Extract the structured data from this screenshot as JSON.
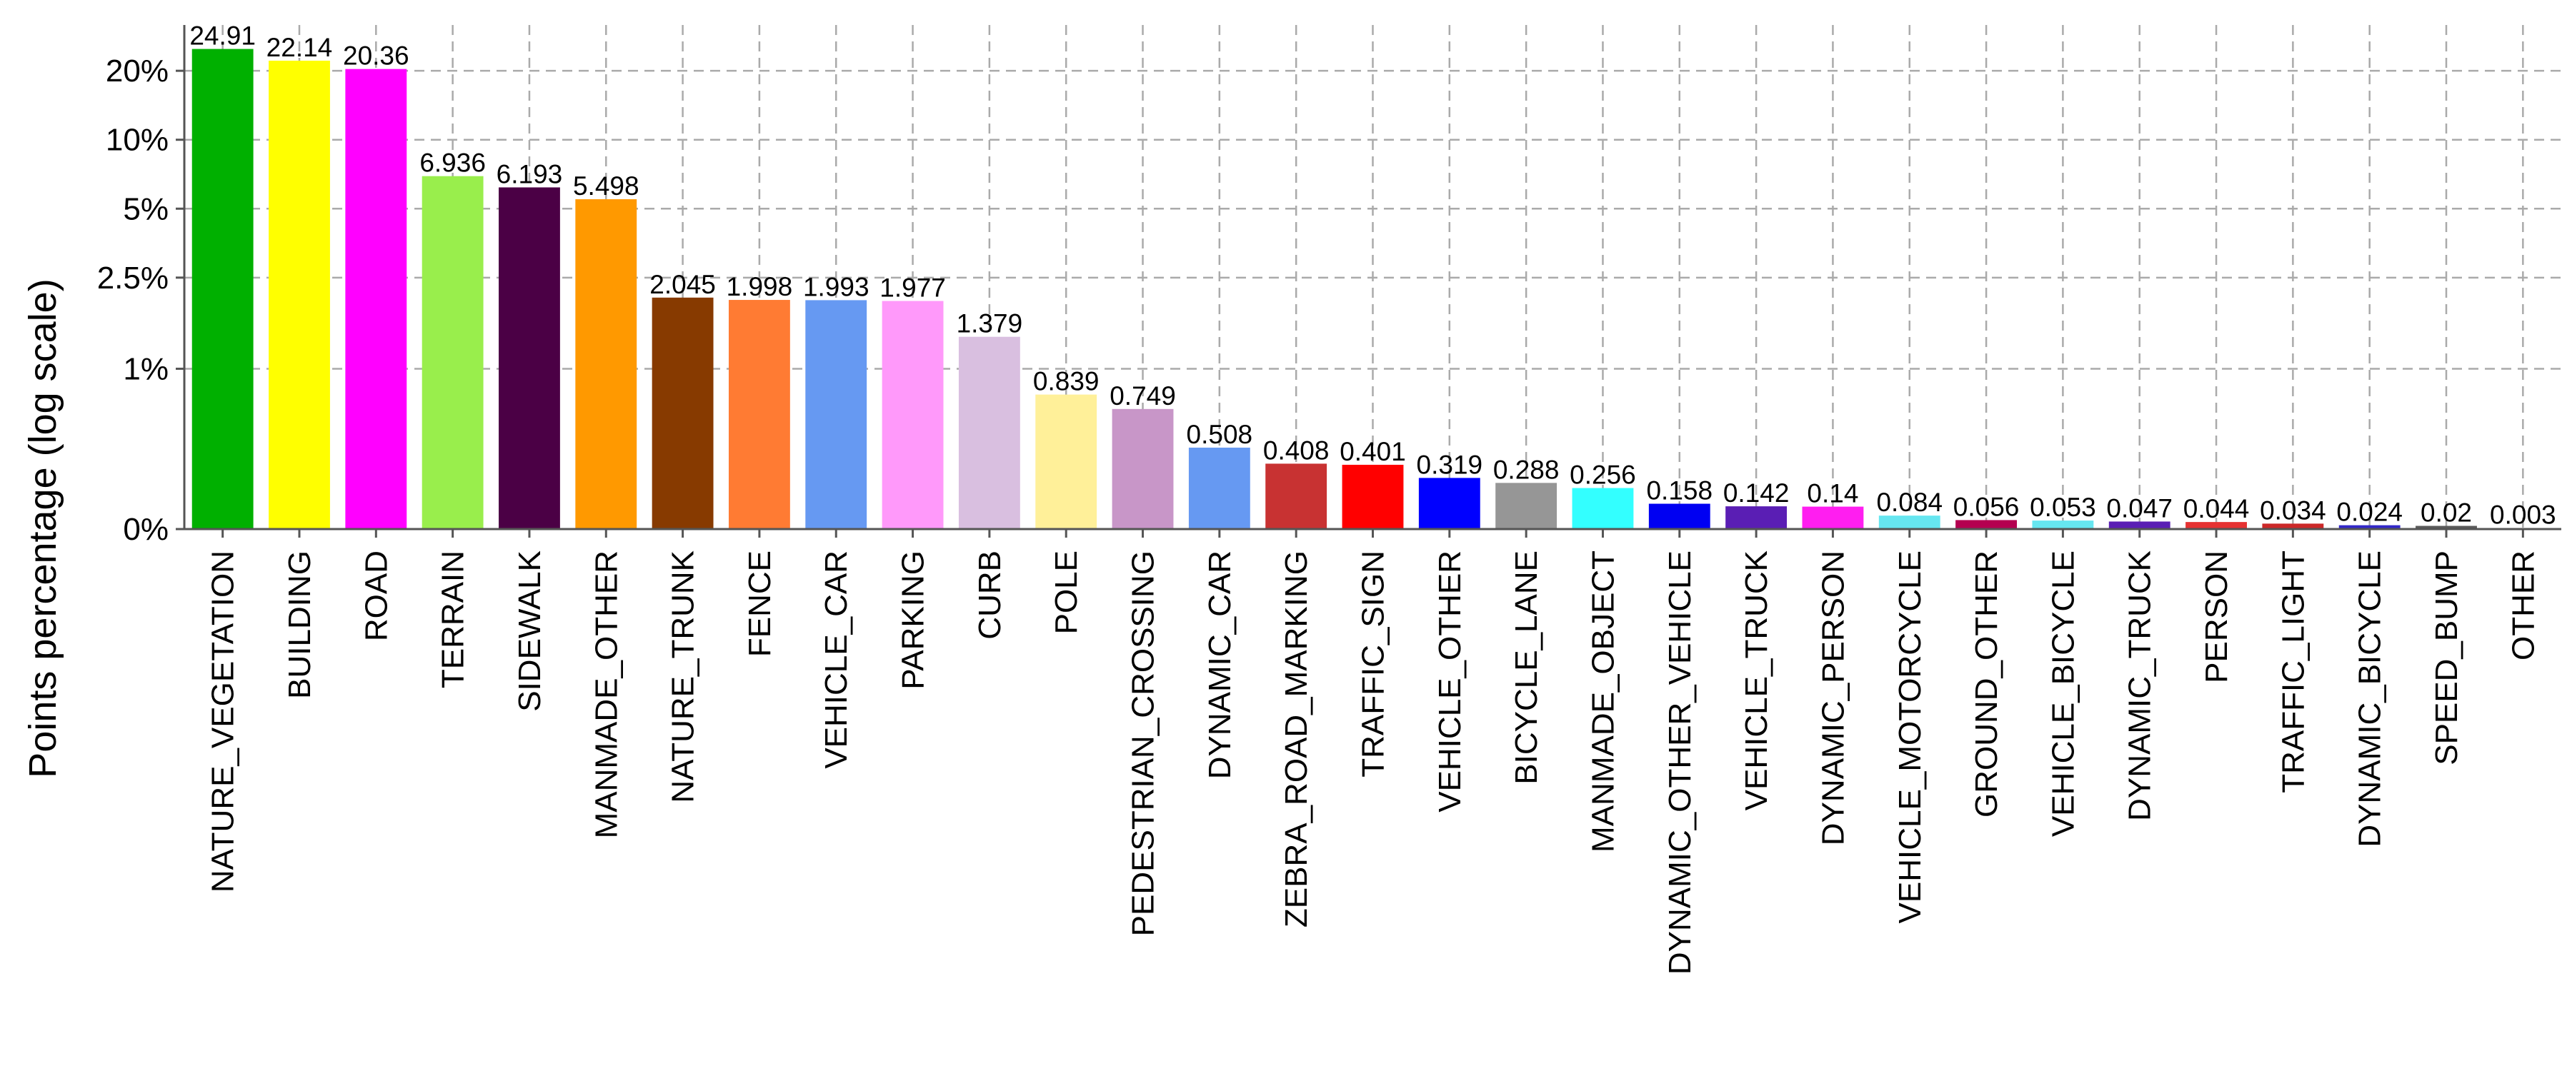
{
  "chart_data": {
    "type": "bar",
    "ylabel": "Points percentage (log scale)",
    "yscale": "log",
    "grid": true,
    "yticks": [
      {
        "value": 0,
        "label": "0%"
      },
      {
        "value": 1,
        "label": "1%"
      },
      {
        "value": 2.5,
        "label": "2.5%"
      },
      {
        "value": 5,
        "label": "5%"
      },
      {
        "value": 10,
        "label": "10%"
      },
      {
        "value": 20,
        "label": "20%"
      }
    ],
    "categories": [
      "NATURE_VEGETATION",
      "BUILDING",
      "ROAD",
      "TERRAIN",
      "SIDEWALK",
      "MANMADE_OTHER",
      "NATURE_TRUNK",
      "FENCE",
      "VEHICLE_CAR",
      "PARKING",
      "CURB",
      "POLE",
      "PEDESTRIAN_CROSSING",
      "DYNAMIC_CAR",
      "ZEBRA_ROAD_MARKING",
      "TRAFFIC_SIGN",
      "VEHICLE_OTHER",
      "BICYCLE_LANE",
      "MANMADE_OBJECT",
      "DYNAMIC_OTHER_VEHICLE",
      "VEHICLE_TRUCK",
      "DYNAMIC_PERSON",
      "VEHICLE_MOTORCYCLE",
      "GROUND_OTHER",
      "VEHICLE_BICYCLE",
      "DYNAMIC_TRUCK",
      "PERSON",
      "TRAFFIC_LIGHT",
      "DYNAMIC_BICYCLE",
      "SPEED_BUMP",
      "OTHER"
    ],
    "values": [
      24.91,
      22.14,
      20.36,
      6.936,
      6.193,
      5.498,
      2.045,
      1.998,
      1.993,
      1.977,
      1.379,
      0.839,
      0.749,
      0.508,
      0.408,
      0.401,
      0.319,
      0.288,
      0.256,
      0.158,
      0.142,
      0.14,
      0.084,
      0.056,
      0.053,
      0.047,
      0.044,
      0.034,
      0.024,
      0.02,
      0.003
    ],
    "value_labels": [
      "24.91",
      "22.14",
      "20.36",
      "6.936",
      "6.193",
      "5.498",
      "2.045",
      "1.998",
      "1.993",
      "1.977",
      "1.379",
      "0.839",
      "0.749",
      "0.508",
      "0.408",
      "0.401",
      "0.319",
      "0.288",
      "0.256",
      "0.158",
      "0.142",
      "0.14",
      "0.084",
      "0.056",
      "0.053",
      "0.047",
      "0.044",
      "0.034",
      "0.024",
      "0.02",
      "0.003"
    ],
    "colors": [
      "#00b000",
      "#ffff00",
      "#ff00ff",
      "#99ee4c",
      "#4b0045",
      "#ff9900",
      "#873a00",
      "#ff7b33",
      "#6699f2",
      "#ff99fa",
      "#d9bfe0",
      "#fff099",
      "#c896c8",
      "#6699f2",
      "#c83232",
      "#ff0000",
      "#0000ff",
      "#969696",
      "#33ffff",
      "#0000f2",
      "#5a1eb4",
      "#ff1ef0",
      "#66e6f0",
      "#b40050",
      "#66e6f0",
      "#5a1eb4",
      "#e63232",
      "#cc2828",
      "#3228c8",
      "#5a5a5a",
      "#cccccc"
    ]
  }
}
